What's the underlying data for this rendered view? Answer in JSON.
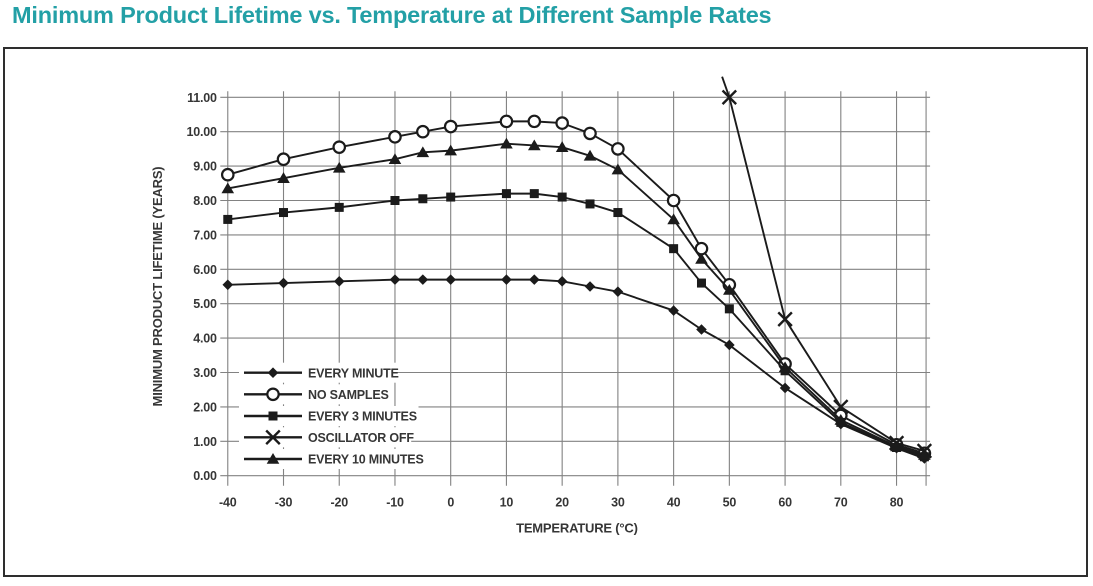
{
  "page": {
    "title": "Minimum Product Lifetime vs. Temperature at Different Sample Rates"
  },
  "colors": {
    "title_teal": "#23a0a6",
    "series_line": "#1b1b1b",
    "grid": "#828282",
    "label_text": "#363636",
    "frame_border": "#2e2e2e",
    "plot_background": "#ffffff"
  },
  "chart_data": {
    "type": "line",
    "title": "Minimum Product Lifetime vs. Temperature at Different Sample Rates",
    "xlabel": "TEMPERATURE (°C)",
    "ylabel": "MINIMUM PRODUCT LIFETIME (YEARS)",
    "xlim": [
      -40,
      85.3
    ],
    "ylim": [
      0,
      11
    ],
    "grid": true,
    "legend_position": "inside lower-left",
    "x_ticks": [
      -40,
      -30,
      -20,
      -10,
      0,
      10,
      20,
      30,
      40,
      50,
      60,
      70,
      80
    ],
    "x_tick_labels": [
      "-40",
      "-30",
      "-20",
      "-10",
      "0",
      "10",
      "20",
      "30",
      "40",
      "50",
      "60",
      "70",
      "80"
    ],
    "y_ticks": [
      0,
      1,
      2,
      3,
      4,
      5,
      6,
      7,
      8,
      9,
      10,
      11
    ],
    "y_tick_labels": [
      "0.00",
      "1.00",
      "2.00",
      "3.00",
      "4.00",
      "5.00",
      "6.00",
      "7.00",
      "8.00",
      "9.00",
      "10.00",
      "11.00"
    ],
    "series": [
      {
        "name": "EVERY MINUTE",
        "marker": "diamond",
        "x": [
          -40,
          -30,
          -20,
          -10,
          -5,
          0,
          10,
          15,
          20,
          25,
          30,
          40,
          45,
          50,
          60,
          70,
          80,
          85
        ],
        "y": [
          5.55,
          5.6,
          5.65,
          5.7,
          5.7,
          5.7,
          5.7,
          5.7,
          5.65,
          5.5,
          5.35,
          4.8,
          4.25,
          3.8,
          2.55,
          1.5,
          0.8,
          0.5
        ]
      },
      {
        "name": "NO SAMPLES",
        "marker": "circle",
        "x": [
          -40,
          -30,
          -20,
          -10,
          -5,
          0,
          10,
          15,
          20,
          25,
          30,
          40,
          45,
          50,
          60,
          70,
          80,
          85
        ],
        "y": [
          8.75,
          9.2,
          9.55,
          9.85,
          10.0,
          10.15,
          10.3,
          10.3,
          10.25,
          9.95,
          9.5,
          8.0,
          6.6,
          5.55,
          3.25,
          1.75,
          0.9,
          0.65
        ]
      },
      {
        "name": "EVERY 3 MINUTES",
        "marker": "square",
        "x": [
          -40,
          -30,
          -20,
          -10,
          -5,
          0,
          10,
          15,
          20,
          25,
          30,
          40,
          45,
          50,
          60,
          70,
          80,
          85
        ],
        "y": [
          7.45,
          7.65,
          7.8,
          8.0,
          8.05,
          8.1,
          8.2,
          8.2,
          8.1,
          7.9,
          7.65,
          6.6,
          5.6,
          4.85,
          3.05,
          1.55,
          0.82,
          0.55
        ]
      },
      {
        "name": "OSCILLATOR OFF",
        "marker": "x",
        "line_enters_from_above": true,
        "x": [
          48.7,
          50,
          60,
          70,
          80,
          85
        ],
        "y": [
          11.6,
          11.0,
          4.55,
          2.0,
          0.95,
          0.72
        ]
      },
      {
        "name": "EVERY 10 MINUTES",
        "marker": "triangle",
        "x": [
          -40,
          -30,
          -20,
          -10,
          -5,
          0,
          10,
          15,
          20,
          25,
          30,
          40,
          45,
          50,
          60,
          70,
          80,
          85
        ],
        "y": [
          8.35,
          8.65,
          8.95,
          9.2,
          9.4,
          9.45,
          9.65,
          9.6,
          9.55,
          9.3,
          8.9,
          7.45,
          6.3,
          5.4,
          3.15,
          1.62,
          0.85,
          0.6
        ]
      }
    ]
  }
}
